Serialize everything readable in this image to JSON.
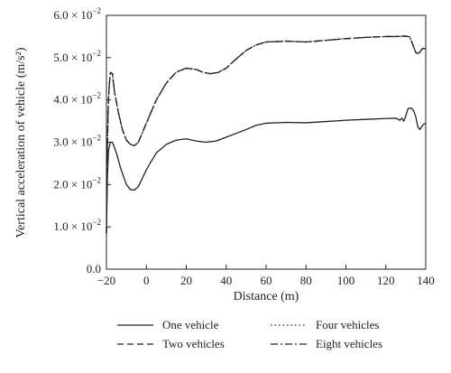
{
  "chart_data": {
    "type": "line",
    "xlabel": "Distance (m)",
    "ylabel": "Vertical acceleration of vehicle (m/s²)",
    "xlim": [
      -20,
      140
    ],
    "ylim": [
      0,
      0.06
    ],
    "x_ticks": [
      -20,
      0,
      20,
      40,
      60,
      80,
      100,
      120,
      140
    ],
    "x_tick_labels": [
      "−20",
      "0",
      "20",
      "40",
      "60",
      "80",
      "100",
      "120",
      "140"
    ],
    "y_ticks": [
      0,
      0.01,
      0.02,
      0.03,
      0.04,
      0.05,
      0.06
    ],
    "y_tick_labels": [
      {
        "mantissa": "0.0",
        "exponent": ""
      },
      {
        "mantissa": "1.0 × 10",
        "exponent": "−2"
      },
      {
        "mantissa": "2.0 × 10",
        "exponent": "−2"
      },
      {
        "mantissa": "3.0 × 10",
        "exponent": "−2"
      },
      {
        "mantissa": "4.0 × 10",
        "exponent": "−2"
      },
      {
        "mantissa": "5.0 × 10",
        "exponent": "−2"
      },
      {
        "mantissa": "6.0 × 10",
        "exponent": "−2"
      }
    ],
    "grid": false,
    "legend_position": "bottom",
    "series": [
      {
        "name": "One vehicle",
        "style": "solid",
        "points": [
          [
            -20,
            0.0085
          ],
          [
            -19.5,
            0.022
          ],
          [
            -19,
            0.028
          ],
          [
            -18,
            0.03
          ],
          [
            -17,
            0.03
          ],
          [
            -15,
            0.0275
          ],
          [
            -13,
            0.024
          ],
          [
            -10,
            0.02
          ],
          [
            -8,
            0.0188
          ],
          [
            -6,
            0.0187
          ],
          [
            -4,
            0.0195
          ],
          [
            0,
            0.0235
          ],
          [
            5,
            0.0275
          ],
          [
            10,
            0.0295
          ],
          [
            15,
            0.0305
          ],
          [
            20,
            0.0308
          ],
          [
            25,
            0.0303
          ],
          [
            30,
            0.03
          ],
          [
            35,
            0.0303
          ],
          [
            40,
            0.0312
          ],
          [
            50,
            0.033
          ],
          [
            55,
            0.034
          ],
          [
            60,
            0.0345
          ],
          [
            70,
            0.0347
          ],
          [
            80,
            0.0346
          ],
          [
            90,
            0.0349
          ],
          [
            100,
            0.0352
          ],
          [
            110,
            0.0354
          ],
          [
            120,
            0.0356
          ],
          [
            125,
            0.0357
          ],
          [
            127,
            0.0352
          ],
          [
            128,
            0.0357
          ],
          [
            129,
            0.035
          ],
          [
            130,
            0.0362
          ],
          [
            131,
            0.0378
          ],
          [
            132,
            0.0381
          ],
          [
            133,
            0.038
          ],
          [
            134,
            0.0374
          ],
          [
            135,
            0.036
          ],
          [
            136,
            0.0337
          ],
          [
            137,
            0.033
          ],
          [
            138,
            0.0337
          ],
          [
            139,
            0.0343
          ],
          [
            140,
            0.0345
          ]
        ]
      },
      {
        "name": "Two vehicles",
        "style": "dashed",
        "points": [
          [
            -20,
            0.0085
          ],
          [
            -19.5,
            0.03
          ],
          [
            -19,
            0.04
          ],
          [
            -18.5,
            0.044
          ],
          [
            -18,
            0.0465
          ],
          [
            -17,
            0.0462
          ],
          [
            -16,
            0.042
          ],
          [
            -14,
            0.037
          ],
          [
            -12,
            0.033
          ],
          [
            -10,
            0.0305
          ],
          [
            -8,
            0.0295
          ],
          [
            -6,
            0.0292
          ],
          [
            -4,
            0.03
          ],
          [
            0,
            0.0345
          ],
          [
            5,
            0.04
          ],
          [
            10,
            0.044
          ],
          [
            15,
            0.0466
          ],
          [
            20,
            0.0475
          ],
          [
            25,
            0.0472
          ],
          [
            28,
            0.0466
          ],
          [
            32,
            0.0462
          ],
          [
            36,
            0.0465
          ],
          [
            40,
            0.0475
          ],
          [
            45,
            0.0497
          ],
          [
            50,
            0.0517
          ],
          [
            55,
            0.053
          ],
          [
            60,
            0.0537
          ],
          [
            70,
            0.0539
          ],
          [
            80,
            0.0537
          ],
          [
            90,
            0.0541
          ],
          [
            100,
            0.0545
          ],
          [
            110,
            0.0548
          ],
          [
            120,
            0.055
          ],
          [
            125,
            0.055
          ],
          [
            130,
            0.0551
          ],
          [
            132,
            0.0549
          ],
          [
            134,
            0.0525
          ],
          [
            135,
            0.0512
          ],
          [
            136,
            0.051
          ],
          [
            137,
            0.0512
          ],
          [
            138,
            0.052
          ],
          [
            139,
            0.0522
          ],
          [
            140,
            0.0521
          ]
        ]
      },
      {
        "name": "Four vehicles",
        "style": "dotted",
        "points": [
          [
            -20,
            0.0085
          ],
          [
            -19.5,
            0.03
          ],
          [
            -19,
            0.04
          ],
          [
            -18.5,
            0.044
          ],
          [
            -18,
            0.0465
          ],
          [
            -17,
            0.0462
          ],
          [
            -16,
            0.042
          ],
          [
            -14,
            0.037
          ],
          [
            -12,
            0.033
          ],
          [
            -10,
            0.0305
          ],
          [
            -8,
            0.0295
          ],
          [
            -6,
            0.0292
          ],
          [
            -4,
            0.03
          ],
          [
            0,
            0.0345
          ],
          [
            5,
            0.04
          ],
          [
            10,
            0.044
          ],
          [
            15,
            0.0466
          ],
          [
            20,
            0.0475
          ],
          [
            25,
            0.0472
          ],
          [
            28,
            0.0466
          ],
          [
            32,
            0.0462
          ],
          [
            36,
            0.0465
          ],
          [
            40,
            0.0475
          ],
          [
            45,
            0.0497
          ],
          [
            50,
            0.0517
          ],
          [
            55,
            0.053
          ],
          [
            60,
            0.0537
          ],
          [
            70,
            0.0539
          ],
          [
            80,
            0.0537
          ],
          [
            90,
            0.0541
          ],
          [
            100,
            0.0545
          ],
          [
            110,
            0.0548
          ],
          [
            120,
            0.055
          ],
          [
            125,
            0.055
          ],
          [
            130,
            0.0551
          ],
          [
            132,
            0.0549
          ],
          [
            134,
            0.0525
          ],
          [
            135,
            0.0512
          ],
          [
            136,
            0.051
          ],
          [
            137,
            0.0512
          ],
          [
            138,
            0.052
          ],
          [
            139,
            0.0522
          ],
          [
            140,
            0.0521
          ]
        ]
      },
      {
        "name": "Eight vehicles",
        "style": "dashdot",
        "points": [
          [
            -20,
            0.0085
          ],
          [
            -19.5,
            0.03
          ],
          [
            -19,
            0.04
          ],
          [
            -18.5,
            0.044
          ],
          [
            -18,
            0.0465
          ],
          [
            -17,
            0.0462
          ],
          [
            -16,
            0.042
          ],
          [
            -14,
            0.037
          ],
          [
            -12,
            0.033
          ],
          [
            -10,
            0.0305
          ],
          [
            -8,
            0.0295
          ],
          [
            -6,
            0.0292
          ],
          [
            -4,
            0.03
          ],
          [
            0,
            0.0345
          ],
          [
            5,
            0.04
          ],
          [
            10,
            0.044
          ],
          [
            15,
            0.0466
          ],
          [
            20,
            0.0475
          ],
          [
            25,
            0.0472
          ],
          [
            28,
            0.0466
          ],
          [
            32,
            0.0462
          ],
          [
            36,
            0.0465
          ],
          [
            40,
            0.0475
          ],
          [
            45,
            0.0497
          ],
          [
            50,
            0.0517
          ],
          [
            55,
            0.053
          ],
          [
            60,
            0.0537
          ],
          [
            70,
            0.0539
          ],
          [
            80,
            0.0537
          ],
          [
            90,
            0.0541
          ],
          [
            100,
            0.0545
          ],
          [
            110,
            0.0548
          ],
          [
            120,
            0.055
          ],
          [
            125,
            0.055
          ],
          [
            130,
            0.0551
          ],
          [
            132,
            0.0549
          ],
          [
            134,
            0.0525
          ],
          [
            135,
            0.0512
          ],
          [
            136,
            0.051
          ],
          [
            137,
            0.0512
          ],
          [
            138,
            0.052
          ],
          [
            139,
            0.0522
          ],
          [
            140,
            0.0521
          ]
        ]
      }
    ],
    "legend": [
      {
        "name": "One vehicle",
        "style": "solid"
      },
      {
        "name": "Two vehicles",
        "style": "dashed"
      },
      {
        "name": "Four vehicles",
        "style": "dotted"
      },
      {
        "name": "Eight vehicles",
        "style": "dashdot"
      }
    ]
  }
}
